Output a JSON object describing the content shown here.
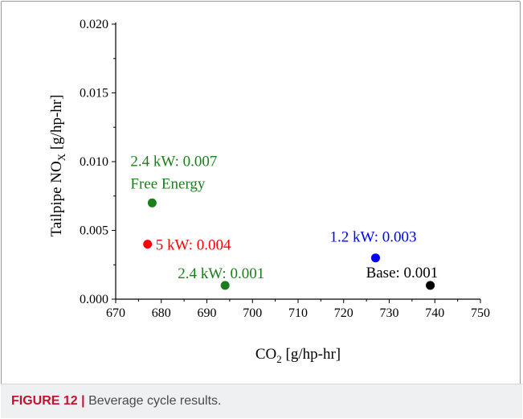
{
  "caption": {
    "figure_label": "FIGURE 12",
    "separator": "|",
    "text": "Beverage cycle results."
  },
  "chart_data": {
    "type": "scatter",
    "xlabel": "CO2 [g/hp-hr]",
    "xlabel_main": "CO",
    "xlabel_sub": "2",
    "xlabel_rest": " [g/hp-hr]",
    "ylabel": "Tailpipe NOX [g/hp-hr]",
    "ylabel_main": "Tailpipe NO",
    "ylabel_sub": "X",
    "ylabel_rest": " [g/hp-hr]",
    "xlim": [
      670,
      750
    ],
    "ylim": [
      0.0,
      0.02
    ],
    "xticks": [
      670,
      680,
      690,
      700,
      710,
      720,
      730,
      740,
      750
    ],
    "yticks": [
      0.0,
      0.005,
      0.01,
      0.015,
      0.02
    ],
    "xtick_labels": [
      "670",
      "680",
      "690",
      "700",
      "710",
      "720",
      "730",
      "740",
      "750"
    ],
    "ytick_labels": [
      "0.000",
      "0.005",
      "0.010",
      "0.015",
      "0.020"
    ],
    "grid": false,
    "points": [
      {
        "x": 678,
        "y": 0.007,
        "color": "#1a7f1a",
        "label_lines": [
          "2.4 kW: 0.007",
          "Free Energy"
        ]
      },
      {
        "x": 677,
        "y": 0.004,
        "color": "#ff0000",
        "label_lines": [
          "5 kW: 0.004"
        ]
      },
      {
        "x": 694,
        "y": 0.001,
        "color": "#1a7f1a",
        "label_lines": [
          "2.4 kW: 0.001"
        ]
      },
      {
        "x": 727,
        "y": 0.003,
        "color": "#0000ff",
        "label_lines": [
          "1.2 kW: 0.003"
        ]
      },
      {
        "x": 739,
        "y": 0.001,
        "color": "#000000",
        "label_lines": [
          "Base: 0.001"
        ]
      }
    ]
  }
}
